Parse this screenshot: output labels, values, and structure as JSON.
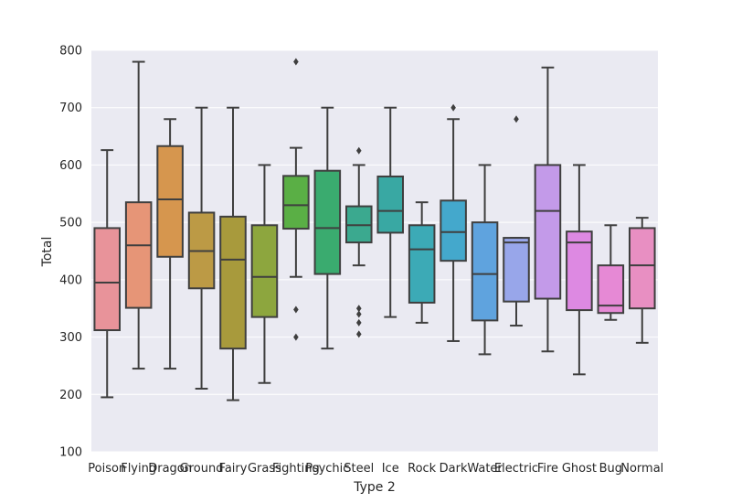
{
  "chart_data": {
    "type": "box",
    "xlabel": "Type 2",
    "ylabel": "Total",
    "ylim": [
      100,
      800
    ],
    "yticks": [
      100,
      200,
      300,
      400,
      500,
      600,
      700,
      800
    ],
    "grid": true,
    "categories": [
      "Poison",
      "Flying",
      "Dragon",
      "Ground",
      "Fairy",
      "Grass",
      "Fighting",
      "Psychic",
      "Steel",
      "Ice",
      "Rock",
      "Dark",
      "Water",
      "Electric",
      "Fire",
      "Ghost",
      "Bug",
      "Normal"
    ],
    "boxes": [
      {
        "category": "Poison",
        "color": "#e8939a",
        "whisker_low": 195,
        "q1": 312,
        "median": 395,
        "q3": 490,
        "whisker_high": 626,
        "outliers": []
      },
      {
        "category": "Flying",
        "color": "#e69577",
        "whisker_low": 245,
        "q1": 351,
        "median": 460,
        "q3": 535,
        "whisker_high": 780,
        "outliers": []
      },
      {
        "category": "Dragon",
        "color": "#d6964e",
        "whisker_low": 245,
        "q1": 440,
        "median": 540,
        "q3": 633,
        "whisker_high": 680,
        "outliers": []
      },
      {
        "category": "Ground",
        "color": "#bc9a45",
        "whisker_low": 210,
        "q1": 385,
        "median": 450,
        "q3": 517,
        "whisker_high": 700,
        "outliers": []
      },
      {
        "category": "Fairy",
        "color": "#a89a3c",
        "whisker_low": 190,
        "q1": 280,
        "median": 435,
        "q3": 510,
        "whisker_high": 700,
        "outliers": []
      },
      {
        "category": "Grass",
        "color": "#8da63e",
        "whisker_low": 220,
        "q1": 335,
        "median": 405,
        "q3": 495,
        "whisker_high": 600,
        "outliers": []
      },
      {
        "category": "Fighting",
        "color": "#5aaf45",
        "whisker_low": 405,
        "q1": 489,
        "median": 530,
        "q3": 581,
        "whisker_high": 630,
        "outliers": [
          780,
          348,
          300
        ]
      },
      {
        "category": "Psychic",
        "color": "#3aab6f",
        "whisker_low": 280,
        "q1": 410,
        "median": 490,
        "q3": 590,
        "whisker_high": 700,
        "outliers": []
      },
      {
        "category": "Steel",
        "color": "#3ba98f",
        "whisker_low": 425,
        "q1": 465,
        "median": 495,
        "q3": 528,
        "whisker_high": 600,
        "outliers": [
          625,
          350,
          340,
          325,
          305
        ]
      },
      {
        "category": "Ice",
        "color": "#39a8a3",
        "whisker_low": 335,
        "q1": 482,
        "median": 520,
        "q3": 580,
        "whisker_high": 700,
        "outliers": []
      },
      {
        "category": "Rock",
        "color": "#3caab6",
        "whisker_low": 325,
        "q1": 360,
        "median": 453,
        "q3": 495,
        "whisker_high": 535,
        "outliers": []
      },
      {
        "category": "Dark",
        "color": "#44a8cc",
        "whisker_low": 293,
        "q1": 433,
        "median": 483,
        "q3": 538,
        "whisker_high": 680,
        "outliers": [
          700
        ]
      },
      {
        "category": "Water",
        "color": "#5fa3de",
        "whisker_low": 270,
        "q1": 329,
        "median": 410,
        "q3": 500,
        "whisker_high": 600,
        "outliers": []
      },
      {
        "category": "Electric",
        "color": "#98a6ea",
        "whisker_low": 320,
        "q1": 362,
        "median": 465,
        "q3": 473,
        "whisker_high": 473,
        "outliers": [
          680
        ]
      },
      {
        "category": "Fire",
        "color": "#c39ae9",
        "whisker_low": 275,
        "q1": 367,
        "median": 520,
        "q3": 600,
        "whisker_high": 770,
        "outliers": []
      },
      {
        "category": "Ghost",
        "color": "#dd89e2",
        "whisker_low": 235,
        "q1": 347,
        "median": 465,
        "q3": 484,
        "whisker_high": 600,
        "outliers": []
      },
      {
        "category": "Bug",
        "color": "#e689d5",
        "whisker_low": 330,
        "q1": 342,
        "median": 355,
        "q3": 425,
        "whisker_high": 495,
        "outliers": []
      },
      {
        "category": "Normal",
        "color": "#e88fc2",
        "whisker_low": 290,
        "q1": 350,
        "median": 425,
        "q3": 490,
        "whisker_high": 508,
        "outliers": []
      }
    ]
  }
}
